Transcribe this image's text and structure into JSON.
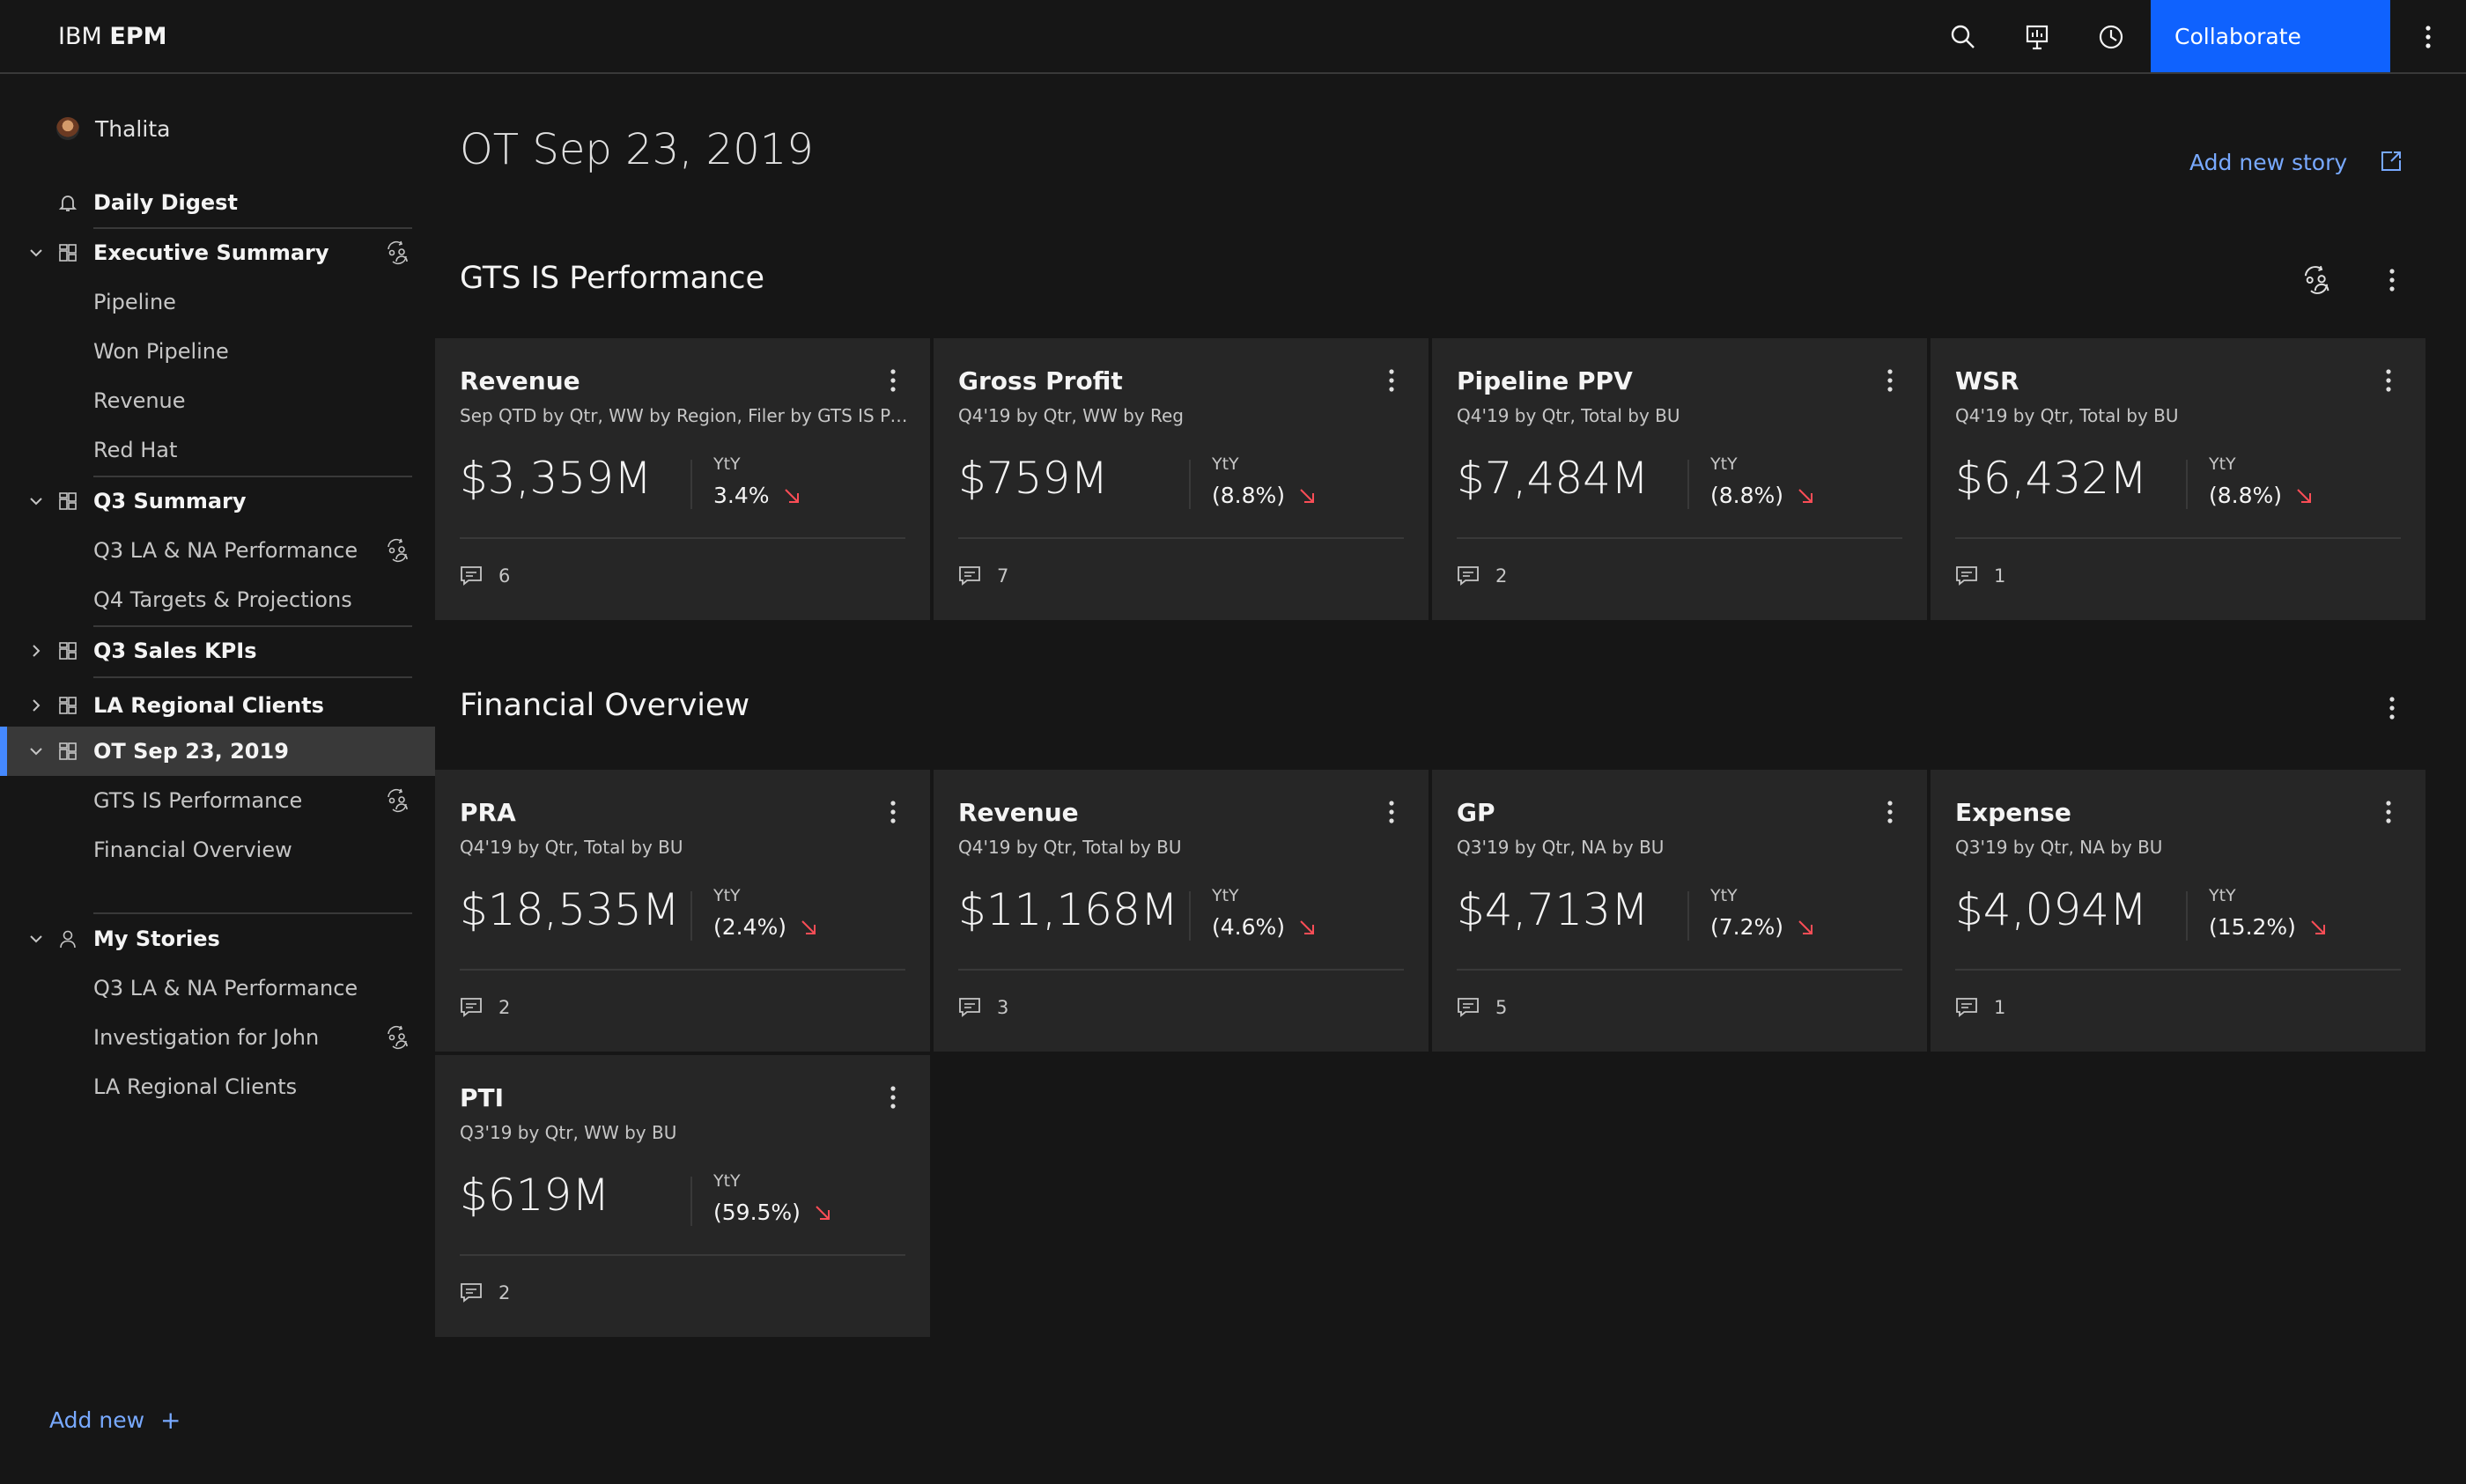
{
  "header": {
    "brand_prefix": "IBM",
    "brand_name": "EPM",
    "collaborate_label": "Collaborate",
    "icons": [
      "search-icon",
      "presentation-icon",
      "history-icon",
      "overflow-menu-icon"
    ]
  },
  "sidebar": {
    "user_name": "Thalita",
    "daily_digest": "Daily Digest",
    "executive_summary": "Executive Summary",
    "exec_items": [
      "Pipeline",
      "Won Pipeline",
      "Revenue",
      "Red Hat"
    ],
    "q3_summary": "Q3 Summary",
    "q3_items": [
      "Q3 LA & NA Performance",
      "Q4 Targets & Projections"
    ],
    "q3_sales_kpis": "Q3 Sales KPIs",
    "la_regional_clients": "LA Regional Clients",
    "ot_sep": "OT Sep 23, 2019",
    "ot_items": [
      "GTS IS Performance",
      "Financial Overview"
    ],
    "my_stories": "My Stories",
    "my_items": [
      "Q3 LA & NA Performance",
      "Investigation for John",
      "LA Regional Clients"
    ],
    "add_new": "Add new",
    "add_new_plus": "+"
  },
  "main": {
    "page_title": "OT Sep 23, 2019",
    "add_story": "Add new story",
    "gts": {
      "title": "GTS IS Performance",
      "cards": [
        {
          "title": "Revenue",
          "subtitle": "Sep QTD by Qtr, WW by Region, Filer by GTS IS Performance",
          "value": "$3,359M",
          "yty_label": "YtY",
          "yty": "3.4%",
          "comments": "6"
        },
        {
          "title": "Gross Profit",
          "subtitle": "Q4'19 by Qtr, WW by Reg",
          "value": "$759M",
          "yty_label": "YtY",
          "yty": "(8.8%)",
          "comments": "7"
        },
        {
          "title": "Pipeline PPV",
          "subtitle": "Q4'19 by Qtr, Total by BU",
          "value": "$7,484M",
          "yty_label": "YtY",
          "yty": "(8.8%)",
          "comments": "2"
        },
        {
          "title": "WSR",
          "subtitle": "Q4'19 by Qtr, Total by BU",
          "value": "$6,432M",
          "yty_label": "YtY",
          "yty": "(8.8%)",
          "comments": "1"
        }
      ]
    },
    "financial": {
      "title": "Financial Overview",
      "cards": [
        {
          "title": "PRA",
          "subtitle": "Q4'19 by Qtr, Total by BU",
          "value": "$18,535M",
          "yty_label": "YtY",
          "yty": "(2.4%)",
          "comments": "2"
        },
        {
          "title": "Revenue",
          "subtitle": "Q4'19 by Qtr, Total by BU",
          "value": "$11,168M",
          "yty_label": "YtY",
          "yty": "(4.6%)",
          "comments": "3"
        },
        {
          "title": "GP",
          "subtitle": "Q3'19 by Qtr, NA by BU",
          "value": "$4,713M",
          "yty_label": "YtY",
          "yty": "(7.2%)",
          "comments": "5"
        },
        {
          "title": "Expense",
          "subtitle": "Q3'19 by Qtr, NA by BU",
          "value": "$4,094M",
          "yty_label": "YtY",
          "yty": "(15.2%)",
          "comments": "1"
        },
        {
          "title": "PTI",
          "subtitle": "Q3'19 by Qtr, WW by BU",
          "value": "$619M",
          "yty_label": "YtY",
          "yty": "(59.5%)",
          "comments": "2"
        }
      ]
    }
  },
  "colors": {
    "accent": "#0f62fe",
    "link": "#78a9ff",
    "negative": "#fa4d56",
    "background": "#161616",
    "card": "#262626"
  }
}
